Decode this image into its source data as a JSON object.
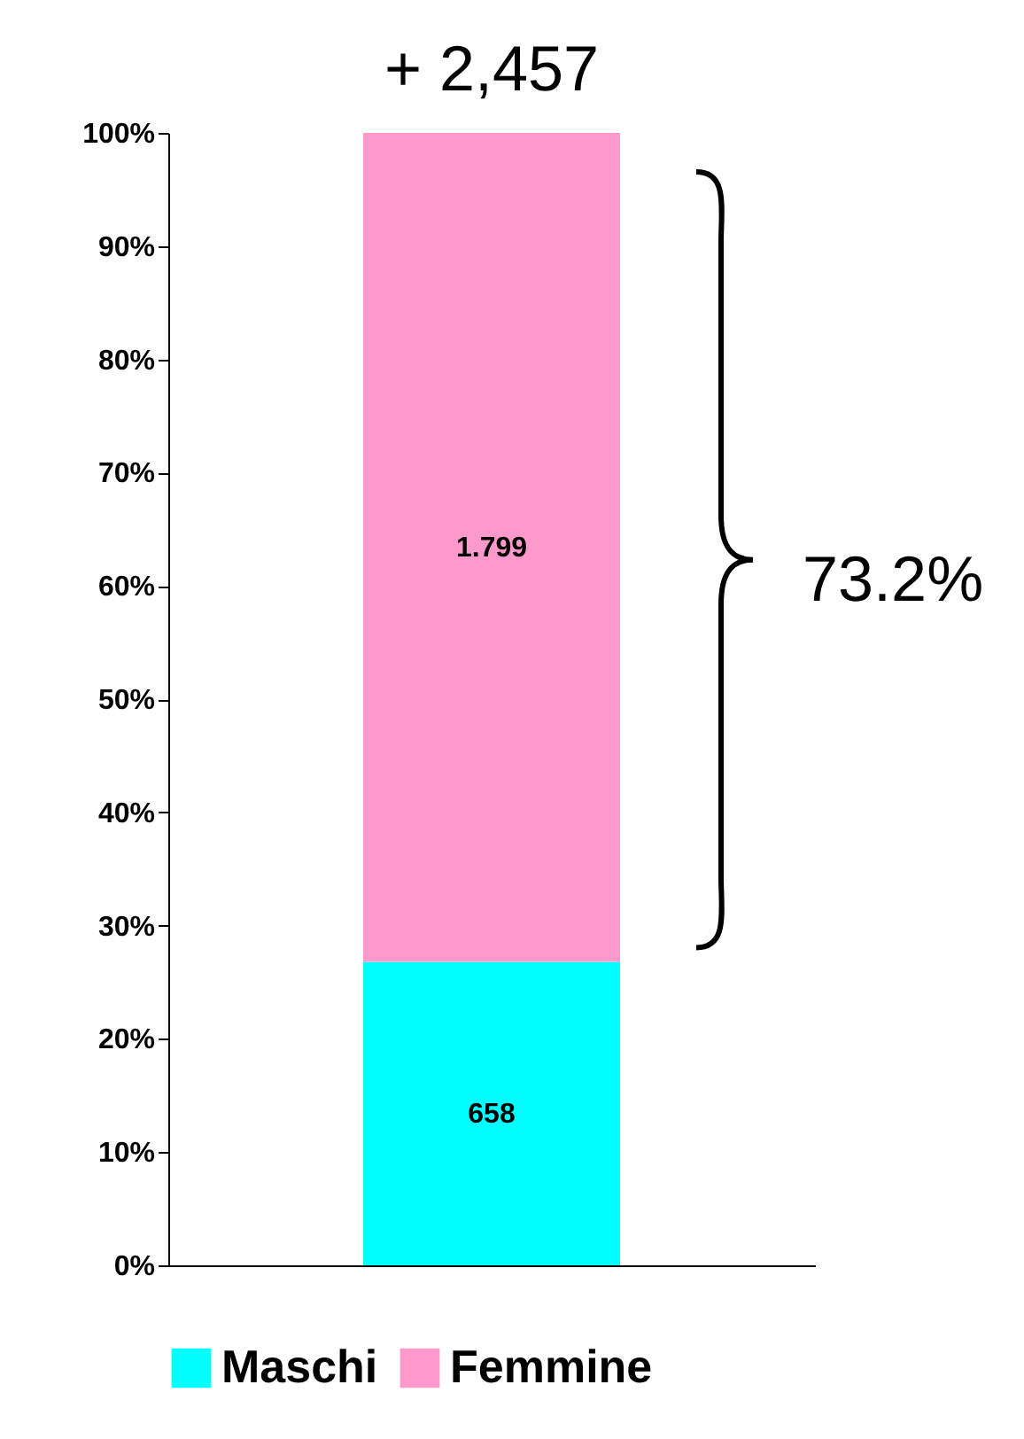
{
  "chart_data": {
    "type": "bar",
    "title": "+ 2,457",
    "categories": [
      null
    ],
    "stacked": true,
    "series": [
      {
        "name": "Maschi",
        "color": "#00ffff",
        "values": [
          26.8
        ]
      },
      {
        "name": "Femmine",
        "color": "#ff99cc",
        "values": [
          73.2
        ]
      }
    ],
    "ylim": [
      0,
      100
    ],
    "yticks": [
      {
        "value": 0,
        "label": "0%"
      },
      {
        "value": 10,
        "label": "10%"
      },
      {
        "value": 20,
        "label": "20%"
      },
      {
        "value": 30,
        "label": "30%"
      },
      {
        "value": 40,
        "label": "40%"
      },
      {
        "value": 50,
        "label": "50%"
      },
      {
        "value": 60,
        "label": "60%"
      },
      {
        "value": 70,
        "label": "70%"
      },
      {
        "value": 80,
        "label": "80%"
      },
      {
        "value": 90,
        "label": "90%"
      },
      {
        "value": 100,
        "label": "100%"
      }
    ],
    "legend": "bottom",
    "annotations": [
      "658",
      "1.799",
      "73.2%"
    ]
  }
}
